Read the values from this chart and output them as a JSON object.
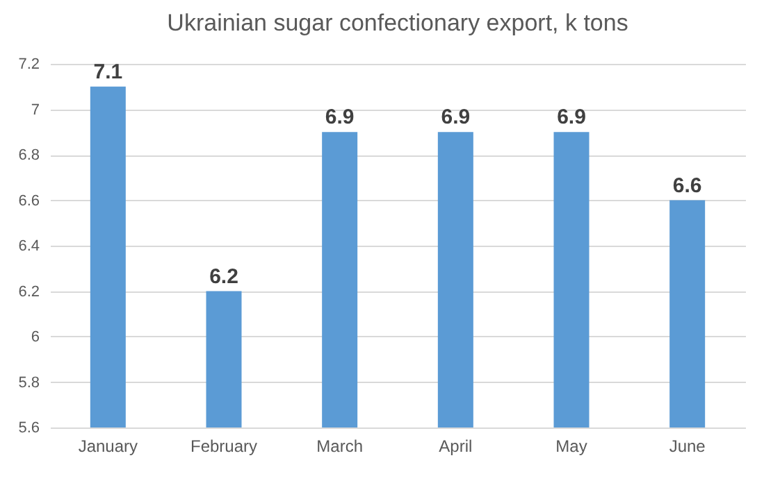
{
  "chart_data": {
    "type": "bar",
    "title": "Ukrainian sugar confectionary export, k tons",
    "categories": [
      "January",
      "February",
      "March",
      "April",
      "May",
      "June"
    ],
    "values": [
      7.1,
      6.2,
      6.9,
      6.9,
      6.9,
      6.6
    ],
    "color": "#5b9bd5",
    "ylim": [
      5.6,
      7.2
    ],
    "yticks": [
      5.6,
      5.8,
      6,
      6.2,
      6.4,
      6.6,
      6.8,
      7,
      7.2
    ],
    "grid": "y",
    "data_labels": true
  }
}
